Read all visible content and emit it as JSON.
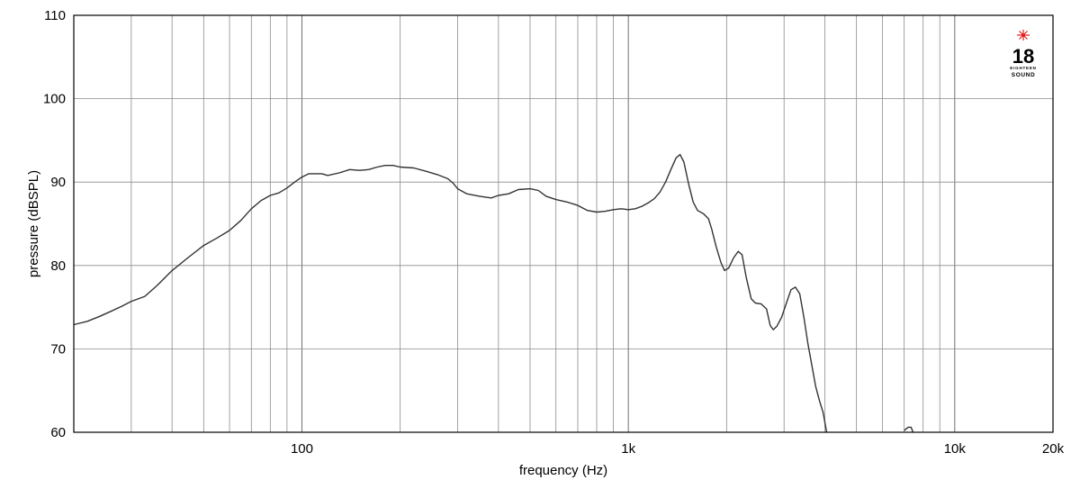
{
  "chart_data": {
    "type": "line",
    "xscale": "log",
    "xlim": [
      20,
      20000
    ],
    "ylim": [
      60,
      110
    ],
    "xlabel": "frequency (Hz)",
    "ylabel": "pressure (dBSPL)",
    "grid": true,
    "x_major_ticks": [
      100,
      1000,
      10000,
      20000
    ],
    "x_tick_labels": [
      "100",
      "1k",
      "10k",
      "20k"
    ],
    "x_minor_grid": [
      30,
      40,
      50,
      60,
      70,
      80,
      90,
      200,
      300,
      400,
      500,
      600,
      700,
      800,
      900,
      2000,
      3000,
      4000,
      5000,
      6000,
      7000,
      8000,
      9000
    ],
    "y_ticks": [
      60,
      70,
      80,
      90,
      100,
      110
    ],
    "y_tick_labels": [
      "60",
      "70",
      "80",
      "90",
      "100",
      "110"
    ],
    "line_color": "#333333",
    "series": [
      {
        "segments": [
          [
            [
              20,
              72.9
            ],
            [
              22,
              73.3
            ],
            [
              24,
              73.9
            ],
            [
              26,
              74.5
            ],
            [
              28,
              75.1
            ],
            [
              30,
              75.7
            ],
            [
              33,
              76.3
            ],
            [
              36,
              77.6
            ],
            [
              40,
              79.4
            ],
            [
              45,
              81.0
            ],
            [
              50,
              82.4
            ],
            [
              55,
              83.3
            ],
            [
              60,
              84.2
            ],
            [
              65,
              85.4
            ],
            [
              70,
              86.8
            ],
            [
              75,
              87.8
            ],
            [
              80,
              88.4
            ],
            [
              85,
              88.7
            ],
            [
              90,
              89.3
            ],
            [
              95,
              90.0
            ],
            [
              100,
              90.6
            ],
            [
              105,
              91.0
            ],
            [
              110,
              91.0
            ],
            [
              115,
              91.0
            ],
            [
              120,
              90.8
            ],
            [
              130,
              91.1
            ],
            [
              140,
              91.5
            ],
            [
              150,
              91.4
            ],
            [
              160,
              91.5
            ],
            [
              170,
              91.8
            ],
            [
              180,
              92.0
            ],
            [
              190,
              92.0
            ],
            [
              200,
              91.8
            ],
            [
              220,
              91.7
            ],
            [
              240,
              91.3
            ],
            [
              260,
              90.9
            ],
            [
              280,
              90.4
            ],
            [
              290,
              89.9
            ],
            [
              300,
              89.2
            ],
            [
              320,
              88.6
            ],
            [
              350,
              88.3
            ],
            [
              380,
              88.1
            ],
            [
              400,
              88.4
            ],
            [
              430,
              88.6
            ],
            [
              460,
              89.1
            ],
            [
              500,
              89.2
            ],
            [
              530,
              89.0
            ],
            [
              560,
              88.3
            ],
            [
              600,
              87.9
            ],
            [
              650,
              87.6
            ],
            [
              700,
              87.2
            ],
            [
              750,
              86.6
            ],
            [
              800,
              86.4
            ],
            [
              850,
              86.5
            ],
            [
              900,
              86.7
            ],
            [
              950,
              86.8
            ],
            [
              1000,
              86.7
            ],
            [
              1050,
              86.8
            ],
            [
              1100,
              87.1
            ],
            [
              1150,
              87.5
            ],
            [
              1200,
              88.0
            ],
            [
              1250,
              88.8
            ],
            [
              1300,
              90.0
            ],
            [
              1350,
              91.5
            ],
            [
              1400,
              92.9
            ],
            [
              1440,
              93.3
            ],
            [
              1480,
              92.4
            ],
            [
              1530,
              89.8
            ],
            [
              1580,
              87.6
            ],
            [
              1630,
              86.6
            ],
            [
              1700,
              86.2
            ],
            [
              1760,
              85.6
            ],
            [
              1800,
              84.4
            ],
            [
              1860,
              82.2
            ],
            [
              1920,
              80.4
            ],
            [
              1970,
              79.4
            ],
            [
              2030,
              79.7
            ],
            [
              2100,
              80.9
            ],
            [
              2170,
              81.7
            ],
            [
              2230,
              81.3
            ],
            [
              2300,
              78.5
            ],
            [
              2380,
              76.0
            ],
            [
              2450,
              75.5
            ],
            [
              2550,
              75.4
            ],
            [
              2650,
              74.8
            ],
            [
              2720,
              72.8
            ],
            [
              2780,
              72.3
            ],
            [
              2850,
              72.7
            ],
            [
              2950,
              73.8
            ],
            [
              3050,
              75.5
            ],
            [
              3150,
              77.1
            ],
            [
              3250,
              77.4
            ],
            [
              3350,
              76.6
            ],
            [
              3450,
              73.8
            ],
            [
              3550,
              70.6
            ],
            [
              3650,
              68.0
            ],
            [
              3750,
              65.5
            ],
            [
              3850,
              63.8
            ],
            [
              3950,
              62.4
            ],
            [
              4050,
              60.0
            ]
          ],
          [
            [
              7000,
              60.2
            ],
            [
              7200,
              60.6
            ],
            [
              7350,
              60.6
            ],
            [
              7450,
              60.0
            ]
          ]
        ]
      }
    ]
  },
  "logo": {
    "brand_number": "18",
    "brand_line1": "EIGHTEEN",
    "brand_line2": "SOUND",
    "star_color": "#e0201e"
  }
}
